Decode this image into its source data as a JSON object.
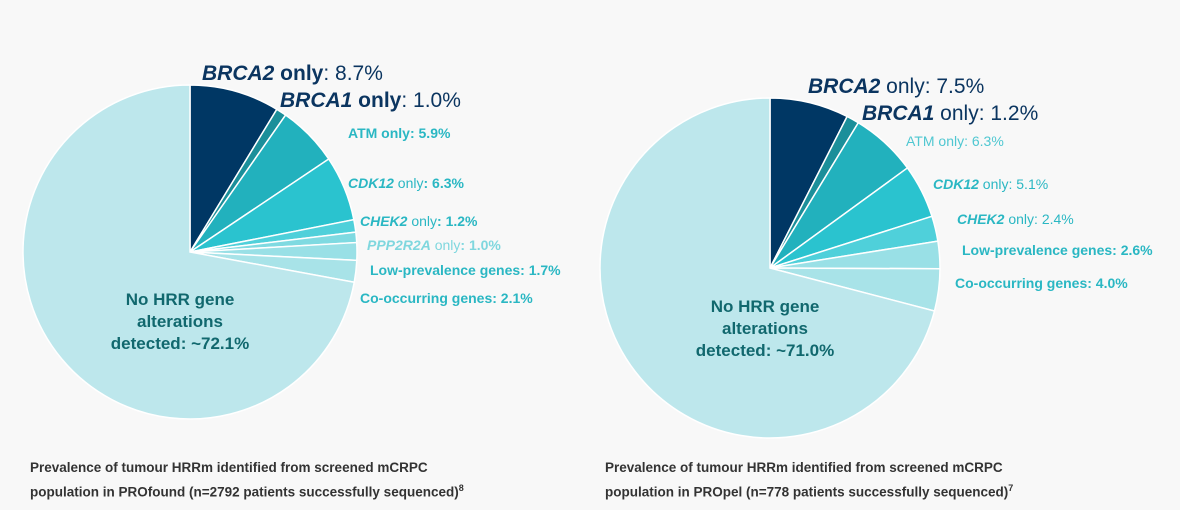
{
  "colors": {
    "brca2": "#003764",
    "brca1": "#1b8f9a",
    "atm": "#22b1bd",
    "cdk12": "#2ac3cf",
    "chek2": "#4fd0da",
    "ppp2r2a": "#7fdae1",
    "lowprev": "#99e0e6",
    "cooc": "#a8e3e8",
    "nohrr": "#bde7ec"
  },
  "chart_data": [
    {
      "type": "pie",
      "title": "",
      "center_label": [
        "No HRR gene",
        "alterations",
        "detected: ~72.1%"
      ],
      "slices": [
        {
          "gene": "BRCA2",
          "rest": " only",
          "pct": ": 8.7%",
          "value": 8.7,
          "color": "brca2"
        },
        {
          "gene": "BRCA1",
          "rest": " only",
          "pct": ": 1.0%",
          "value": 1.0,
          "color": "brca1"
        },
        {
          "gene": "",
          "rest": "ATM only",
          "pct": ": 5.9%",
          "value": 5.9,
          "color": "atm"
        },
        {
          "gene": "CDK12",
          "rest": " only",
          "pct": ": 6.3%",
          "value": 6.3,
          "color": "cdk12"
        },
        {
          "gene": "CHEK2",
          "rest": " only",
          "pct": ": 1.2%",
          "value": 1.2,
          "color": "chek2"
        },
        {
          "gene": "PPP2R2A",
          "rest": " only",
          "pct": ": 1.0%",
          "value": 1.0,
          "color": "ppp2r2a"
        },
        {
          "gene": "",
          "rest": "Low-prevalence genes",
          "pct": ": 1.7%",
          "value": 1.7,
          "color": "lowprev"
        },
        {
          "gene": "",
          "rest": "Co-occurring genes",
          "pct": ": 2.1%",
          "value": 2.1,
          "color": "cooc"
        },
        {
          "gene": "",
          "rest": "",
          "pct": "",
          "value": 72.1,
          "color": "nohrr"
        }
      ],
      "caption_line1": "Prevalence of tumour HRRm identified from screened mCRPC",
      "caption_line2": "population in PROfound (n=2792 patients successfully sequenced)",
      "caption_sup": "8"
    },
    {
      "type": "pie",
      "title": "",
      "center_label": [
        "No HRR gene",
        "alterations",
        "detected: ~71.0%"
      ],
      "slices": [
        {
          "gene": "BRCA2",
          "rest": " only",
          "pct": ": 7.5%",
          "value": 7.5,
          "color": "brca2"
        },
        {
          "gene": "BRCA1",
          "rest": " only",
          "pct": ": 1.2%",
          "value": 1.2,
          "color": "brca1"
        },
        {
          "gene": "",
          "rest": "ATM only",
          "pct": ": 6.3%",
          "value": 6.3,
          "color": "atm"
        },
        {
          "gene": "CDK12",
          "rest": " only",
          "pct": ": 5.1%",
          "value": 5.1,
          "color": "cdk12"
        },
        {
          "gene": "CHEK2",
          "rest": " only",
          "pct": ": 2.4%",
          "value": 2.4,
          "color": "chek2"
        },
        {
          "gene": "",
          "rest": "Low-prevalence genes",
          "pct": ": 2.6%",
          "value": 2.6,
          "color": "lowprev"
        },
        {
          "gene": "",
          "rest": "Co-occurring genes",
          "pct": ": 4.0%",
          "value": 4.0,
          "color": "cooc"
        },
        {
          "gene": "",
          "rest": "",
          "pct": "",
          "value": 71.0,
          "color": "nohrr"
        }
      ],
      "caption_line1": "Prevalence of tumour HRRm identified from screened mCRPC",
      "caption_line2": "population in PROpel (n=778 patients successfully sequenced)",
      "caption_sup": "7"
    }
  ]
}
